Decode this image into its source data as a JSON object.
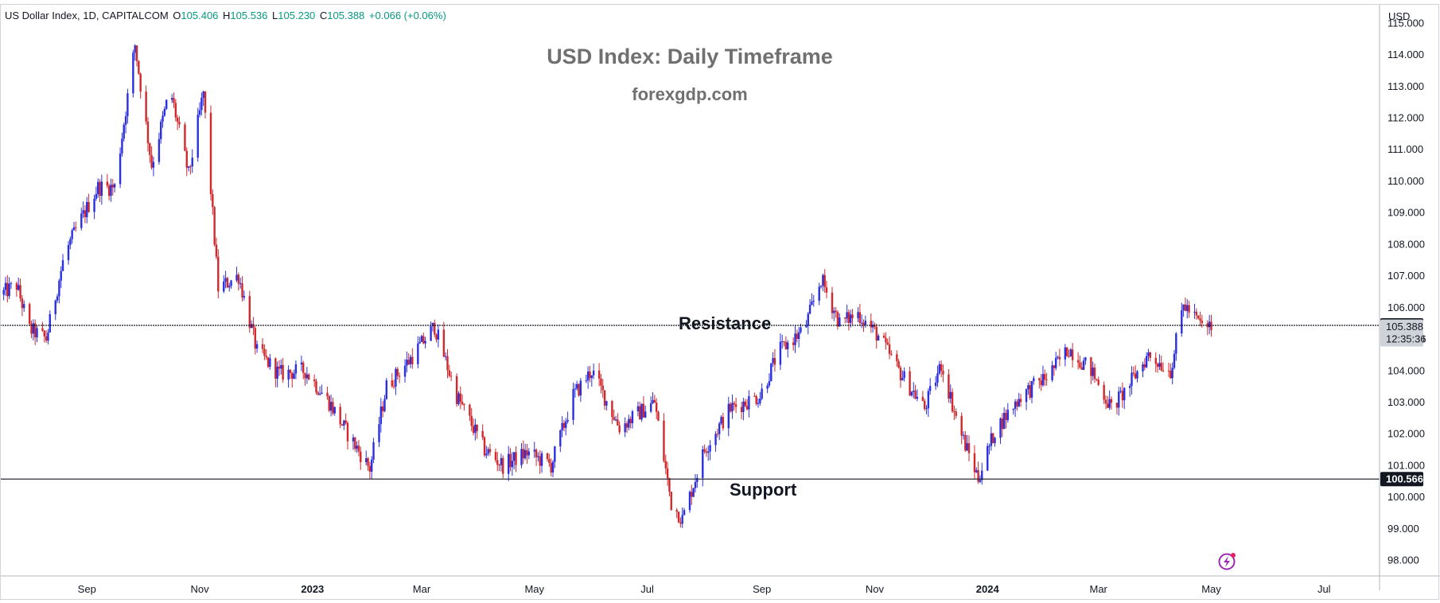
{
  "header": {
    "symbol": "US Dollar Index, 1D, CAPITALCOM",
    "open_label": "O",
    "open": "105.406",
    "high_label": "H",
    "high": "105.536",
    "low_label": "L",
    "low": "105.230",
    "close_label": "C",
    "close": "105.388",
    "change": "+0.066 (+0.06%)"
  },
  "chart_data": {
    "type": "candlestick",
    "title": "USD Index: Daily Timeframe",
    "subtitle": "forexgdp.com",
    "currency": "USD",
    "y_ticks": [
      "98.000",
      "99.000",
      "100.000",
      "101.000",
      "102.000",
      "103.000",
      "104.000",
      "105.000",
      "106.000",
      "107.000",
      "108.000",
      "109.000",
      "110.000",
      "111.000",
      "112.000",
      "113.000",
      "114.000",
      "115.000"
    ],
    "ylim": [
      97.5,
      115.6
    ],
    "x_ticks": [
      "Sep",
      "Nov",
      "2023",
      "Mar",
      "May",
      "Jul",
      "Sep",
      "Nov",
      "2024",
      "Mar",
      "May",
      "Jul"
    ],
    "x_range": [
      "2022-07-16",
      "2024-07-31"
    ],
    "levels": [
      {
        "name": "Resistance",
        "value": 105.43,
        "label": "105.430"
      },
      {
        "name": "Support",
        "value": 100.566,
        "label": "100.566"
      }
    ],
    "last_price": "105.388",
    "countdown": "12:35:36",
    "path": [
      [
        "2022-07-16",
        106.4
      ],
      [
        "2022-07-25",
        106.7
      ],
      [
        "2022-08-01",
        105.3
      ],
      [
        "2022-08-10",
        105.0
      ],
      [
        "2022-08-20",
        107.7
      ],
      [
        "2022-08-29",
        108.8
      ],
      [
        "2022-09-07",
        109.8
      ],
      [
        "2022-09-16",
        109.8
      ],
      [
        "2022-09-27",
        114.3
      ],
      [
        "2022-10-06",
        110.5
      ],
      [
        "2022-10-16",
        112.9
      ],
      [
        "2022-10-26",
        110.2
      ],
      [
        "2022-11-03",
        112.8
      ],
      [
        "2022-11-11",
        106.6
      ],
      [
        "2022-11-22",
        107.0
      ],
      [
        "2022-12-02",
        104.6
      ],
      [
        "2022-12-14",
        103.9
      ],
      [
        "2022-12-28",
        104.0
      ],
      [
        "2023-01-10",
        103.0
      ],
      [
        "2023-01-20",
        102.0
      ],
      [
        "2023-02-01",
        100.9
      ],
      [
        "2023-02-10",
        103.5
      ],
      [
        "2023-02-22",
        104.3
      ],
      [
        "2023-03-08",
        105.4
      ],
      [
        "2023-03-20",
        103.2
      ],
      [
        "2023-04-04",
        101.5
      ],
      [
        "2023-04-14",
        101.0
      ],
      [
        "2023-04-27",
        101.4
      ],
      [
        "2023-05-10",
        101.0
      ],
      [
        "2023-05-22",
        103.2
      ],
      [
        "2023-06-01",
        104.0
      ],
      [
        "2023-06-16",
        102.2
      ],
      [
        "2023-06-30",
        102.8
      ],
      [
        "2023-07-05",
        103.0
      ],
      [
        "2023-07-14",
        99.8
      ],
      [
        "2023-07-20",
        99.3
      ],
      [
        "2023-08-01",
        101.5
      ],
      [
        "2023-08-15",
        102.8
      ],
      [
        "2023-08-31",
        103.2
      ],
      [
        "2023-09-10",
        104.6
      ],
      [
        "2023-09-24",
        105.3
      ],
      [
        "2023-10-03",
        106.9
      ],
      [
        "2023-10-13",
        105.5
      ],
      [
        "2023-10-23",
        105.8
      ],
      [
        "2023-11-03",
        105.1
      ],
      [
        "2023-11-14",
        104.0
      ],
      [
        "2023-11-28",
        102.8
      ],
      [
        "2023-12-07",
        104.2
      ],
      [
        "2023-12-17",
        102.1
      ],
      [
        "2023-12-27",
        100.6
      ],
      [
        "2024-01-05",
        102.1
      ],
      [
        "2024-01-19",
        103.2
      ],
      [
        "2024-02-02",
        103.8
      ],
      [
        "2024-02-14",
        104.7
      ],
      [
        "2024-02-26",
        104.0
      ],
      [
        "2024-03-08",
        102.8
      ],
      [
        "2024-03-16",
        103.4
      ],
      [
        "2024-03-28",
        104.5
      ],
      [
        "2024-04-09",
        104.0
      ],
      [
        "2024-04-16",
        106.1
      ],
      [
        "2024-04-26",
        105.4
      ],
      [
        "2024-05-01",
        105.39
      ]
    ]
  },
  "colors": {
    "up": "#2a30e0",
    "down": "#d0282c",
    "level_line": "#131722",
    "axis_text": "#131722",
    "border": "#b2b5be",
    "last_price_bg": "#cfd2d8"
  },
  "icons": {
    "watermark": "lightning-icon"
  }
}
